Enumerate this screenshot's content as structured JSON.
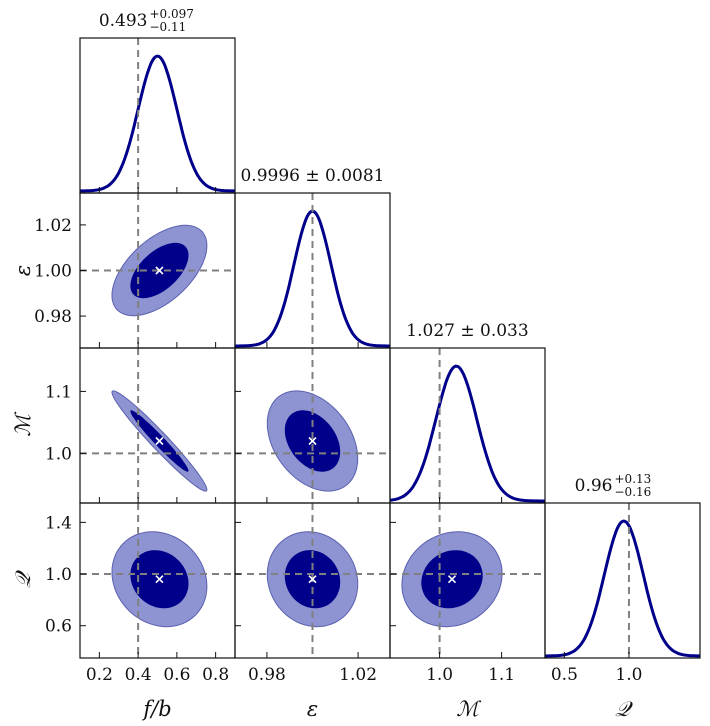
{
  "colors": {
    "inner": "#00008b",
    "outer": "#8e93d1",
    "outer_edge": "#5b60b0",
    "line": "#00008b",
    "truth": "#808080",
    "marker": "#ffffff"
  },
  "params": [
    {
      "key": "fb",
      "label": "f/b",
      "range": [
        0.1,
        0.9
      ],
      "ticks": [
        "0.2",
        "0.4",
        "0.6",
        "0.8"
      ],
      "tick_values": [
        0.2,
        0.4,
        0.6,
        0.8
      ],
      "truth": 0.4,
      "mean": 0.5,
      "sd": 0.1,
      "title": {
        "main": "0.493",
        "sup": "+0.097",
        "sub": "−0.11",
        "pm": ""
      }
    },
    {
      "key": "eps",
      "label": "ε",
      "range": [
        0.966,
        1.034
      ],
      "ticks": [
        "0.98",
        "1.02"
      ],
      "tick_values": [
        0.98,
        1.02
      ],
      "truth": 1.0,
      "mean": 1.0,
      "sd": 0.0081,
      "title": {
        "main": "0.9996 ± 0.0081",
        "sup": "",
        "sub": "",
        "pm": ""
      }
    },
    {
      "key": "M",
      "label": "ℳ",
      "range": [
        0.92,
        1.17
      ],
      "ticks": [
        "1.0",
        "1.1"
      ],
      "tick_values": [
        1.0,
        1.1
      ],
      "truth": 1.0,
      "mean": 1.027,
      "sd": 0.033,
      "title": {
        "main": "1.027 ± 0.033",
        "sup": "",
        "sub": "",
        "pm": ""
      }
    },
    {
      "key": "Q",
      "label": "𝒬",
      "range": [
        0.35,
        1.55
      ],
      "ticks": [
        "0.5",
        "1.0"
      ],
      "tick_values": [
        0.5,
        1.0
      ],
      "truth": 1.0,
      "mean": 0.96,
      "sd": 0.15,
      "title": {
        "main": "0.96",
        "sup": "+0.13",
        "sub": "−0.16",
        "pm": ""
      }
    }
  ],
  "y_axis_ticks": {
    "eps": {
      "ticks": [
        "0.98",
        "1.00",
        "1.02"
      ],
      "tick_values": [
        0.98,
        1.0,
        1.02
      ]
    },
    "M": {
      "ticks": [
        "1.0",
        "1.1"
      ],
      "tick_values": [
        1.0,
        1.1
      ]
    },
    "Q": {
      "ticks": [
        "0.6",
        "1.0",
        "1.4"
      ],
      "tick_values": [
        0.6,
        1.0,
        1.4
      ]
    }
  },
  "chart_data": {
    "type": "scatter",
    "title": "",
    "parameters": [
      "f/b",
      "ε",
      "ℳ",
      "𝒬"
    ],
    "marginal_summaries": [
      {
        "parameter": "f/b",
        "median": 0.493,
        "plus": 0.097,
        "minus": 0.11
      },
      {
        "parameter": "ε",
        "median": 0.9996,
        "plus": 0.0081,
        "minus": 0.0081
      },
      {
        "parameter": "ℳ",
        "median": 1.027,
        "plus": 0.033,
        "minus": 0.033
      },
      {
        "parameter": "𝒬",
        "median": 0.96,
        "plus": 0.13,
        "minus": 0.16
      }
    ],
    "truth_values": {
      "f/b": 0.4,
      "ε": 1.0,
      "ℳ": 1.0,
      "𝒬": 1.0
    },
    "marker_points": [
      {
        "x": "f/b",
        "y": "ε",
        "point": [
          0.51,
          1.0
        ]
      },
      {
        "x": "f/b",
        "y": "ℳ",
        "point": [
          0.51,
          1.02
        ]
      },
      {
        "x": "ε",
        "y": "ℳ",
        "point": [
          1.0,
          1.02
        ]
      },
      {
        "x": "f/b",
        "y": "𝒬",
        "point": [
          0.51,
          0.96
        ]
      },
      {
        "x": "ε",
        "y": "𝒬",
        "point": [
          1.0,
          0.96
        ]
      },
      {
        "x": "ℳ",
        "y": "𝒬",
        "point": [
          1.02,
          0.96
        ]
      }
    ],
    "correlations": {
      "f/b|ε": 0.55,
      "f/b|ℳ": -0.97,
      "ε|ℳ": -0.35,
      "f/b|𝒬": -0.15,
      "ε|𝒬": -0.1,
      "ℳ|𝒬": 0.12
    },
    "grid": false,
    "contour_levels": [
      "inner",
      "outer"
    ]
  }
}
